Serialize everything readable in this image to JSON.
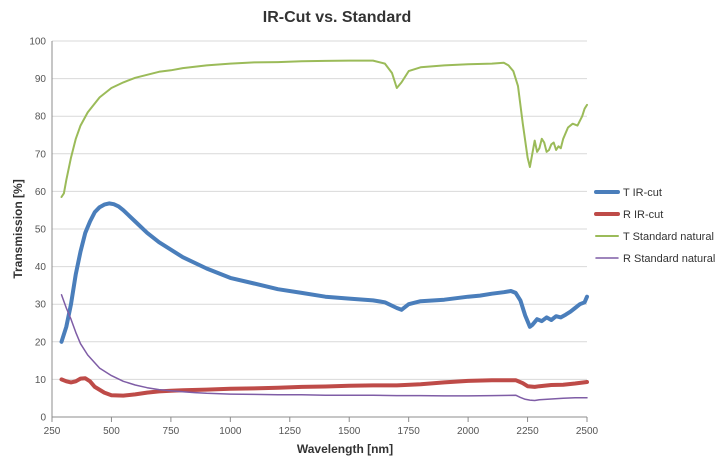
{
  "chart_data": {
    "type": "line",
    "title": "IR-Cut vs. Standard",
    "xlabel": "Wavelength [nm]",
    "ylabel": "Transmission [%]",
    "xlim": [
      250,
      2500
    ],
    "ylim": [
      0,
      100
    ],
    "xticks": [
      250,
      500,
      750,
      1000,
      1250,
      1500,
      1750,
      2000,
      2250,
      2500
    ],
    "yticks": [
      0,
      10,
      20,
      30,
      40,
      50,
      60,
      70,
      80,
      90,
      100
    ],
    "grid": "horizontal",
    "legend_position": "right",
    "series": [
      {
        "name": "T IR-cut",
        "color": "#4a7ebb",
        "width": 4,
        "x": [
          290,
          310,
          330,
          350,
          370,
          390,
          410,
          430,
          450,
          470,
          490,
          510,
          530,
          550,
          600,
          650,
          700,
          750,
          800,
          900,
          1000,
          1100,
          1200,
          1300,
          1400,
          1500,
          1600,
          1650,
          1700,
          1720,
          1750,
          1800,
          1900,
          2000,
          2050,
          2100,
          2150,
          2180,
          2200,
          2220,
          2240,
          2260,
          2270,
          2290,
          2310,
          2330,
          2350,
          2370,
          2390,
          2410,
          2430,
          2450,
          2470,
          2490,
          2500
        ],
        "y": [
          20,
          24,
          30,
          38,
          44,
          49,
          52,
          54.5,
          55.8,
          56.5,
          56.8,
          56.6,
          56,
          55,
          52,
          49,
          46.5,
          44.5,
          42.5,
          39.5,
          37,
          35.5,
          34,
          33,
          32,
          31.5,
          31,
          30.5,
          29,
          28.5,
          30,
          30.8,
          31.2,
          32,
          32.3,
          32.8,
          33.2,
          33.5,
          33,
          31,
          27,
          24,
          24.5,
          26,
          25.5,
          26.5,
          25.8,
          26.8,
          26.5,
          27.2,
          28,
          29,
          30,
          30.5,
          32
        ]
      },
      {
        "name": "R IR-cut",
        "color": "#be4b48",
        "width": 4,
        "x": [
          290,
          310,
          330,
          350,
          370,
          390,
          410,
          430,
          470,
          500,
          550,
          600,
          650,
          700,
          750,
          800,
          900,
          1000,
          1100,
          1200,
          1300,
          1400,
          1500,
          1600,
          1700,
          1800,
          1900,
          2000,
          2100,
          2200,
          2230,
          2250,
          2280,
          2300,
          2350,
          2400,
          2450,
          2500
        ],
        "y": [
          10,
          9.5,
          9.2,
          9.5,
          10.2,
          10.3,
          9.5,
          8,
          6.5,
          5.8,
          5.7,
          6,
          6.5,
          6.8,
          7,
          7.1,
          7.3,
          7.5,
          7.6,
          7.8,
          8,
          8.1,
          8.3,
          8.4,
          8.4,
          8.7,
          9.2,
          9.6,
          9.8,
          9.8,
          9,
          8.2,
          8,
          8.2,
          8.5,
          8.6,
          8.9,
          9.3
        ]
      },
      {
        "name": "T Standard natural",
        "color": "#9bbb59",
        "width": 2,
        "x": [
          290,
          300,
          310,
          330,
          350,
          370,
          400,
          450,
          500,
          550,
          600,
          650,
          700,
          750,
          800,
          900,
          1000,
          1100,
          1200,
          1300,
          1400,
          1500,
          1600,
          1650,
          1680,
          1700,
          1720,
          1750,
          1800,
          1900,
          2000,
          2100,
          2150,
          2170,
          2190,
          2210,
          2230,
          2250,
          2260,
          2270,
          2280,
          2290,
          2300,
          2310,
          2320,
          2330,
          2340,
          2350,
          2360,
          2370,
          2380,
          2390,
          2400,
          2420,
          2440,
          2460,
          2480,
          2490,
          2500
        ],
        "y": [
          58.5,
          59.5,
          63,
          69,
          74,
          77.5,
          81,
          85,
          87.5,
          89,
          90.2,
          91,
          91.8,
          92.2,
          92.8,
          93.5,
          94,
          94.3,
          94.4,
          94.6,
          94.7,
          94.8,
          94.8,
          94,
          91.5,
          87.5,
          89,
          92,
          93,
          93.5,
          93.8,
          94,
          94.2,
          93.5,
          92,
          88,
          78,
          69,
          66.5,
          70,
          73.5,
          70.5,
          71.5,
          74,
          73,
          70.5,
          71,
          72.5,
          73,
          71,
          72,
          71.5,
          74,
          77,
          78,
          77.5,
          80,
          82,
          83
        ]
      },
      {
        "name": "R Standard natural",
        "color": "#7f5da6",
        "width": 1.5,
        "x": [
          290,
          310,
          330,
          350,
          370,
          400,
          450,
          500,
          550,
          600,
          650,
          700,
          750,
          800,
          850,
          900,
          1000,
          1100,
          1200,
          1300,
          1400,
          1500,
          1600,
          1700,
          1800,
          1900,
          2000,
          2100,
          2200,
          2220,
          2240,
          2260,
          2280,
          2300,
          2350,
          2400,
          2450,
          2500
        ],
        "y": [
          32.5,
          29,
          26,
          22.5,
          19.5,
          16.5,
          13,
          11,
          9.5,
          8.5,
          7.8,
          7.3,
          7,
          6.7,
          6.5,
          6.3,
          6.1,
          6,
          5.9,
          5.9,
          5.8,
          5.8,
          5.8,
          5.7,
          5.7,
          5.6,
          5.6,
          5.7,
          5.8,
          5.2,
          4.7,
          4.5,
          4.4,
          4.6,
          4.8,
          5,
          5.1,
          5.1
        ]
      }
    ]
  }
}
